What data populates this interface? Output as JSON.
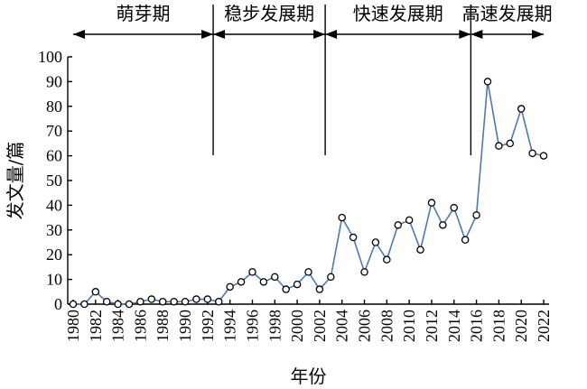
{
  "chart_data": {
    "type": "line",
    "xlabel": "年份",
    "ylabel": "发文量/篇",
    "ylim": [
      0,
      100
    ],
    "xlim": [
      1980,
      2022
    ],
    "yticks": [
      0,
      10,
      20,
      30,
      40,
      50,
      60,
      70,
      80,
      90,
      100
    ],
    "xticks": [
      "1980",
      "1982",
      "1984",
      "1986",
      "1988",
      "1990",
      "1992",
      "1994",
      "1996",
      "1998",
      "2000",
      "2002",
      "2004",
      "2006",
      "2008",
      "2010",
      "2012",
      "2014",
      "2016",
      "2018",
      "2020",
      "2022"
    ],
    "line_color": "#4a7ab5",
    "phases": [
      {
        "label": "萌芽期",
        "start": 1980,
        "end": 1992.5
      },
      {
        "label": "稳步发展期",
        "start": 1992.5,
        "end": 2002.5
      },
      {
        "label": "快速发展期",
        "start": 2002.5,
        "end": 2015.5
      },
      {
        "label": "高速发展期",
        "start": 2015.5,
        "end": 2022
      }
    ],
    "series": [
      {
        "x": [
          1980,
          1981,
          1982,
          1983,
          1984,
          1985,
          1986,
          1987,
          1988,
          1989,
          1990,
          1991,
          1992,
          1993,
          1994,
          1995,
          1996,
          1997,
          1998,
          1999,
          2000,
          2001,
          2002,
          2003,
          2004,
          2005,
          2006,
          2007,
          2008,
          2009,
          2010,
          2011,
          2012,
          2013,
          2014,
          2015,
          2016,
          2017,
          2018,
          2019,
          2020,
          2021,
          2022
        ],
        "values": [
          0,
          0,
          5,
          1,
          0,
          0,
          1,
          2,
          1,
          1,
          1,
          2,
          2,
          1,
          7,
          9,
          13,
          9,
          11,
          6,
          8,
          13,
          6,
          11,
          35,
          27,
          13,
          25,
          18,
          32,
          34,
          22,
          41,
          32,
          39,
          26,
          36,
          90,
          64,
          65,
          79,
          61,
          60
        ]
      }
    ]
  }
}
